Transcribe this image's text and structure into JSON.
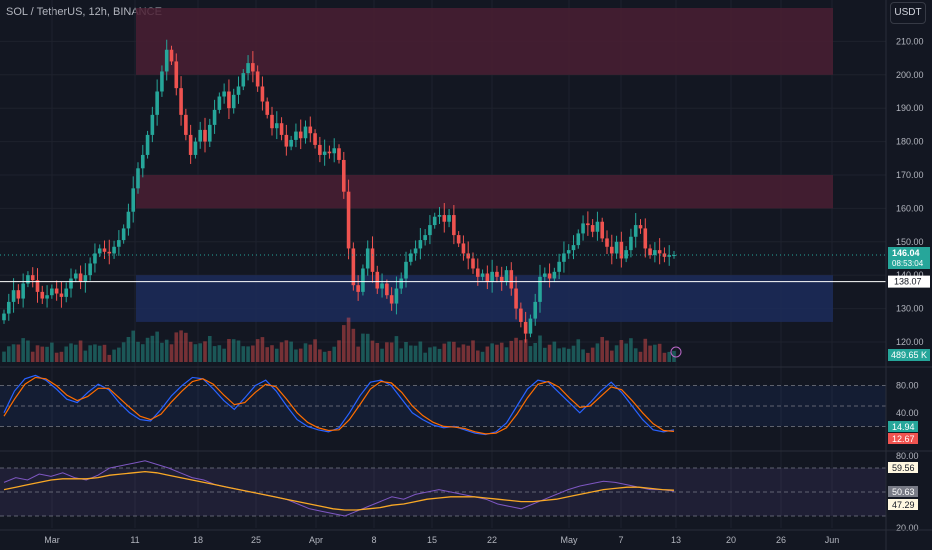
{
  "header": {
    "symbol_line": "SOL / TetherUS, 12h, BINANCE",
    "currency_button": "USDT"
  },
  "price_badges": {
    "last": "146.04",
    "countdown": "08:53:04",
    "line_level": "138.07",
    "volume": "489.65 K"
  },
  "stoch_badges": [
    "14.94",
    "12.67"
  ],
  "rsi_badges": [
    "59.56",
    "50.63",
    "47.29"
  ],
  "colors": {
    "up": "#26a69a",
    "down": "#ef5350",
    "stoch_k": "#2962ff",
    "stoch_d": "#ff6d00",
    "rsi": "#7e57c2",
    "rsi_ma": "#f9a825",
    "supply_zone": "#4a1f33",
    "demand_zone": "#1c2b5a"
  },
  "chart_data": [
    {
      "type": "candlestick",
      "title": "SOL / TetherUS, 12h, BINANCE",
      "x_tick_labels": [
        "Mar",
        "11",
        "18",
        "25",
        "Apr",
        "8",
        "15",
        "22",
        "May",
        "7",
        "13",
        "20",
        "26",
        "Jun"
      ],
      "y_tick_labels": [
        "120.00",
        "130.00",
        "140.00",
        "150.00",
        "160.00",
        "170.00",
        "180.00",
        "190.00",
        "200.00",
        "210.00"
      ],
      "ylim": [
        114,
        220
      ],
      "zones": [
        {
          "kind": "supply",
          "from": 200,
          "to": 220
        },
        {
          "kind": "supply",
          "from": 160,
          "to": 170
        },
        {
          "kind": "demand",
          "from": 126,
          "to": 140
        }
      ],
      "horizontal_line": 138.07,
      "last_price": 146.04,
      "closes": [
        128.5,
        132.0,
        135.5,
        133.0,
        137.5,
        140.0,
        138.5,
        135.0,
        133.0,
        134.0,
        136.0,
        134.5,
        133.5,
        136.0,
        139.0,
        140.5,
        138.0,
        140.0,
        143.5,
        146.5,
        148.0,
        147.0,
        146.5,
        148.5,
        150.5,
        154.0,
        159.0,
        166.0,
        172.0,
        176.0,
        182.0,
        188.0,
        195.0,
        201.0,
        207.5,
        204.0,
        196.0,
        188.0,
        182.0,
        176.0,
        180.0,
        183.5,
        180.0,
        185.0,
        189.5,
        193.5,
        195.0,
        190.0,
        194.0,
        196.5,
        200.5,
        203.5,
        201.0,
        196.5,
        192.0,
        188.0,
        184.0,
        185.5,
        182.0,
        178.5,
        180.5,
        183.0,
        181.0,
        184.5,
        182.5,
        179.0,
        176.0,
        177.0,
        176.5,
        178.0,
        174.5,
        165.0,
        148.0,
        137.0,
        135.0,
        142.0,
        148.0,
        141.0,
        136.0,
        137.5,
        134.0,
        131.5,
        136.0,
        139.0,
        144.0,
        146.5,
        148.0,
        150.5,
        152.0,
        155.0,
        157.5,
        158.0,
        156.0,
        158.0,
        152.0,
        149.5,
        146.5,
        145.0,
        142.0,
        139.5,
        140.5,
        138.0,
        141.0,
        139.5,
        138.0,
        141.5,
        136.0,
        130.0,
        126.0,
        122.5,
        127.0,
        132.0,
        139.5,
        140.5,
        139.0,
        141.0,
        144.0,
        146.5,
        147.5,
        149.0,
        152.5,
        155.5,
        155.0,
        153.0,
        156.0,
        151.0,
        148.5,
        146.5,
        150.0,
        145.0,
        147.5,
        151.5,
        155.0,
        154.0,
        148.0,
        146.0,
        147.5,
        146.5,
        145.5,
        146.0,
        146.04
      ],
      "volume_label": "489.65 K"
    },
    {
      "type": "line",
      "indicator": "stochastic",
      "y_tick_labels": [
        "40.00",
        "80.00"
      ],
      "ylim": [
        0,
        100
      ],
      "band": [
        20,
        80
      ],
      "series": [
        {
          "values": [
            40,
            72,
            90,
            95,
            88,
            75,
            60,
            55,
            70,
            82,
            74,
            55,
            40,
            30,
            28,
            45,
            65,
            80,
            92,
            90,
            75,
            58,
            45,
            62,
            80,
            88,
            72,
            50,
            30,
            20,
            15,
            12,
            18,
            40,
            65,
            85,
            88,
            80,
            60,
            40,
            30,
            22,
            18,
            20,
            15,
            10,
            8,
            12,
            25,
            50,
            75,
            88,
            85,
            70,
            55,
            40,
            55,
            72,
            85,
            70,
            50,
            30,
            15,
            12,
            14.94
          ]
        },
        {
          "values": [
            35,
            60,
            82,
            92,
            90,
            80,
            66,
            58,
            64,
            76,
            76,
            62,
            48,
            35,
            30,
            38,
            56,
            72,
            86,
            90,
            82,
            66,
            52,
            55,
            70,
            82,
            78,
            60,
            40,
            26,
            18,
            14,
            15,
            30,
            52,
            75,
            86,
            84,
            70,
            50,
            36,
            26,
            20,
            19,
            17,
            12,
            9,
            10,
            18,
            38,
            62,
            82,
            86,
            78,
            62,
            48,
            50,
            64,
            78,
            74,
            58,
            40,
            24,
            14,
            12.67
          ]
        }
      ]
    },
    {
      "type": "line",
      "indicator": "rsi",
      "y_tick_labels": [
        "20.00",
        "80.00"
      ],
      "ylim": [
        20,
        80
      ],
      "band": [
        30,
        70
      ],
      "series": [
        {
          "values": [
            58,
            62,
            60,
            65,
            63,
            66,
            62,
            60,
            64,
            70,
            72,
            74,
            76,
            73,
            70,
            66,
            62,
            60,
            56,
            54,
            52,
            50,
            48,
            46,
            44,
            40,
            36,
            34,
            32,
            30,
            34,
            38,
            42,
            46,
            44,
            48,
            50,
            52,
            50,
            48,
            46,
            44,
            40,
            38,
            36,
            40,
            44,
            48,
            52,
            55,
            57,
            59,
            58,
            56,
            54,
            52,
            52,
            50.63
          ]
        },
        {
          "values": [
            52,
            54,
            56,
            58,
            60,
            61,
            61,
            61,
            62,
            64,
            65,
            66,
            67,
            66,
            64,
            62,
            60,
            58,
            56,
            54,
            52,
            50,
            48,
            46,
            44,
            42,
            40,
            38,
            36,
            35,
            35,
            36,
            37,
            39,
            40,
            42,
            44,
            45,
            46,
            46,
            46,
            45,
            44,
            43,
            42,
            42,
            43,
            44,
            46,
            48,
            50,
            52,
            53,
            54,
            54,
            53,
            52,
            51.5
          ]
        }
      ]
    }
  ]
}
